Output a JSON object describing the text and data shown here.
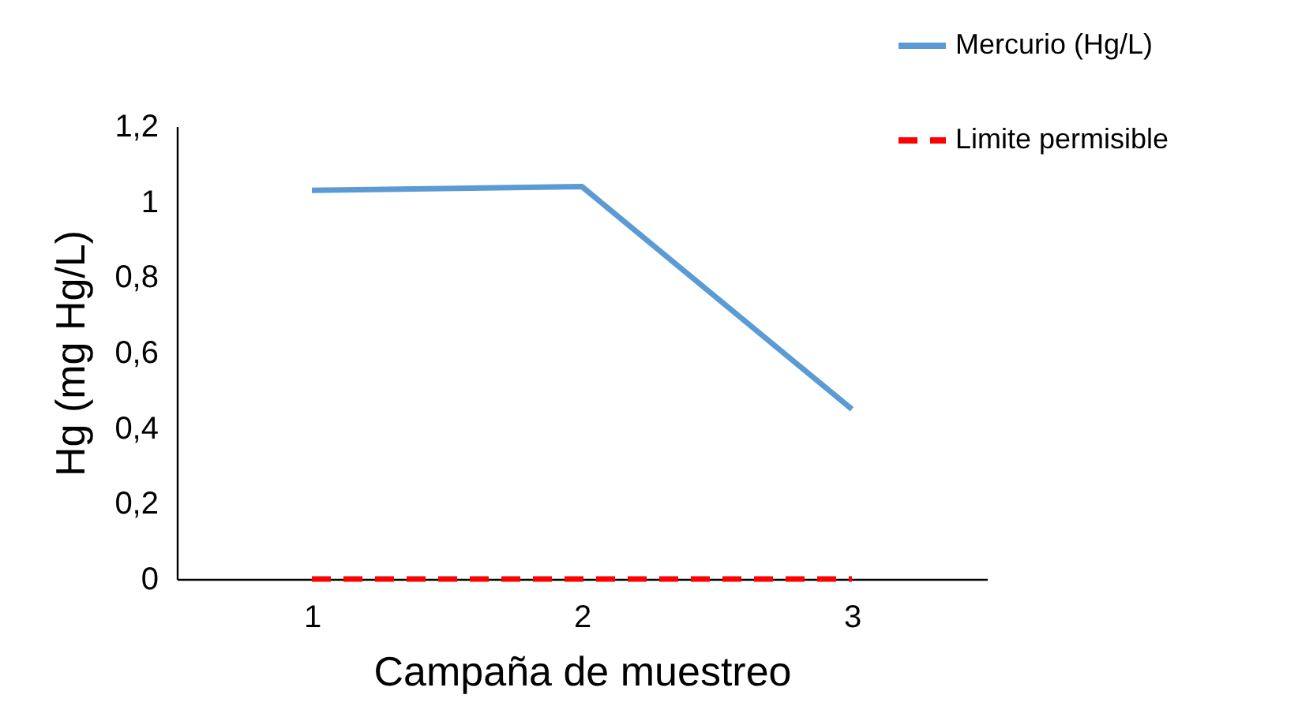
{
  "chart_data": {
    "type": "line",
    "xlabel": "Campaña de muestreo",
    "ylabel": "Hg (mg Hg/L)",
    "categories": [
      "1",
      "2",
      "3"
    ],
    "series": [
      {
        "name": "Mercurio (Hg/L)",
        "color": "#5b9bd5",
        "values": [
          1.03,
          1.04,
          0.45
        ],
        "line_style": "solid"
      },
      {
        "name": "Limite permisible",
        "color": "#ff0000",
        "values": [
          0,
          0,
          0
        ],
        "line_style": "dashed"
      }
    ],
    "ylim": [
      0,
      1.2
    ],
    "yticks": [
      0,
      {
        "value": 0.2,
        "label": "0,2"
      },
      {
        "value": 0.4,
        "label": "0,4"
      },
      {
        "value": 0.6,
        "label": "0,6"
      },
      {
        "value": 0.8,
        "label": "0,8"
      },
      1,
      {
        "value": 1.2,
        "label": "1,2"
      }
    ],
    "grid": false,
    "legend": "top right",
    "marker": "none"
  }
}
